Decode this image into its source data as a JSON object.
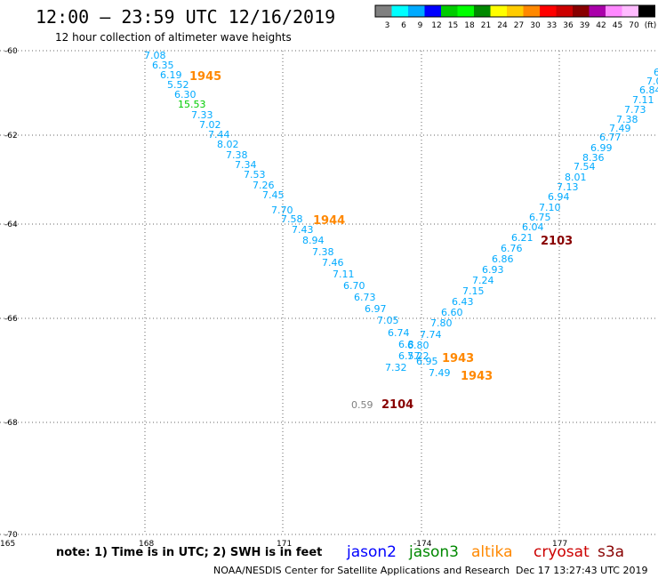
{
  "header": {
    "title": "12:00 — 23:59 UTC 12/16/2019",
    "subtitle": "12 hour collection of altimeter wave heights"
  },
  "colorbar": {
    "labels": [
      "3",
      "6",
      "9",
      "12",
      "15",
      "18",
      "21",
      "24",
      "27",
      "30",
      "33",
      "36",
      "39",
      "42",
      "45",
      "70",
      "(ft)"
    ],
    "colors": [
      "#808080",
      "#00ffff",
      "#00aaff",
      "#0000ff",
      "#00cc00",
      "#00ff00",
      "#008800",
      "#ffff00",
      "#ffcc00",
      "#ff8800",
      "#ff0000",
      "#cc0000",
      "#880000",
      "#aa00aa",
      "#ff88ff",
      "#ffbbff",
      "#000000"
    ]
  },
  "axes": {
    "lat_labels": [
      "-60",
      "-62",
      "-64",
      "-66",
      "-68",
      "-70"
    ],
    "lon_labels": [
      "165",
      "168",
      "171",
      "-174",
      "177"
    ]
  },
  "swh": [
    {
      "t": "7.08",
      "c": "#00aaff"
    },
    {
      "t": "6.35",
      "c": "#00aaff"
    },
    {
      "t": "6.19",
      "c": "#00aaff"
    },
    {
      "t": "5.52",
      "c": "#00aaff"
    },
    {
      "t": "6.30",
      "c": "#00aaff"
    },
    {
      "t": "15.53",
      "c": "#00cc00"
    },
    {
      "t": "7.33",
      "c": "#00aaff"
    },
    {
      "t": "7.02",
      "c": "#00aaff"
    },
    {
      "t": "7.44",
      "c": "#00aaff"
    },
    {
      "t": "8.02",
      "c": "#00aaff"
    },
    {
      "t": "7.38",
      "c": "#00aaff"
    },
    {
      "t": "7.34",
      "c": "#00aaff"
    },
    {
      "t": "7.53",
      "c": "#00aaff"
    },
    {
      "t": "7.26",
      "c": "#00aaff"
    },
    {
      "t": "7.45",
      "c": "#00aaff"
    },
    {
      "t": "7.70",
      "c": "#00aaff"
    },
    {
      "t": "7.58",
      "c": "#00aaff"
    },
    {
      "t": "7.43",
      "c": "#00aaff"
    },
    {
      "t": "8.94",
      "c": "#00aaff"
    },
    {
      "t": "7.38",
      "c": "#00aaff"
    },
    {
      "t": "7.46",
      "c": "#00aaff"
    },
    {
      "t": "7.11",
      "c": "#00aaff"
    },
    {
      "t": "6.70",
      "c": "#00aaff"
    },
    {
      "t": "6.73",
      "c": "#00aaff"
    },
    {
      "t": "6.97",
      "c": "#00aaff"
    },
    {
      "t": "7.05",
      "c": "#00aaff"
    },
    {
      "t": "6.74",
      "c": "#00aaff"
    },
    {
      "t": "6.8",
      "c": "#00aaff"
    },
    {
      "t": "6.57",
      "c": "#00aaff"
    },
    {
      "t": "7.32",
      "c": "#00aaff"
    },
    {
      "t": "6.80",
      "c": "#00aaff"
    },
    {
      "t": "7.22",
      "c": "#00aaff"
    },
    {
      "t": "6.95",
      "c": "#00aaff"
    },
    {
      "t": "7.49",
      "c": "#00aaff"
    },
    {
      "t": "7.74",
      "c": "#00aaff"
    },
    {
      "t": "7.80",
      "c": "#00aaff"
    },
    {
      "t": "6.60",
      "c": "#00aaff"
    },
    {
      "t": "6.43",
      "c": "#00aaff"
    },
    {
      "t": "7.15",
      "c": "#00aaff"
    },
    {
      "t": "7.24",
      "c": "#00aaff"
    },
    {
      "t": "6.93",
      "c": "#00aaff"
    },
    {
      "t": "6.86",
      "c": "#00aaff"
    },
    {
      "t": "6.76",
      "c": "#00aaff"
    },
    {
      "t": "6.21",
      "c": "#00aaff"
    },
    {
      "t": "6.04",
      "c": "#00aaff"
    },
    {
      "t": "6.75",
      "c": "#00aaff"
    },
    {
      "t": "7.10",
      "c": "#00aaff"
    },
    {
      "t": "6.94",
      "c": "#00aaff"
    },
    {
      "t": "7.13",
      "c": "#00aaff"
    },
    {
      "t": "8.01",
      "c": "#00aaff"
    },
    {
      "t": "7.54",
      "c": "#00aaff"
    },
    {
      "t": "8.36",
      "c": "#00aaff"
    },
    {
      "t": "6.99",
      "c": "#00aaff"
    },
    {
      "t": "6.77",
      "c": "#00aaff"
    },
    {
      "t": "7.49",
      "c": "#00aaff"
    },
    {
      "t": "7.38",
      "c": "#00aaff"
    },
    {
      "t": "7.73",
      "c": "#00aaff"
    },
    {
      "t": "7.11",
      "c": "#00aaff"
    },
    {
      "t": "6.84",
      "c": "#00aaff"
    },
    {
      "t": "7.0",
      "c": "#00aaff"
    },
    {
      "t": "6",
      "c": "#00aaff"
    },
    {
      "t": "0.59",
      "c": "#808080"
    }
  ],
  "pass_times": [
    {
      "t": "1945",
      "c": "#ff8800"
    },
    {
      "t": "1944",
      "c": "#ff8800"
    },
    {
      "t": "1943",
      "c": "#ff8800"
    },
    {
      "t": "1943",
      "c": "#ff8800"
    },
    {
      "t": "2103",
      "c": "#880000"
    },
    {
      "t": "2104",
      "c": "#880000"
    }
  ],
  "footer": {
    "note": "note: 1) Time is in UTC; 2) SWH is in feet",
    "satellites": [
      {
        "name": "jason2",
        "color": "#0000ff"
      },
      {
        "name": "jason3",
        "color": "#008800"
      },
      {
        "name": "altika",
        "color": "#ff8800"
      },
      {
        "name": "cryosat",
        "color": "#cc0000"
      },
      {
        "name": "s3a",
        "color": "#880000"
      }
    ],
    "credit": "NOAA/NESDIS Center for Satellite Applications and Research",
    "timestamp": "Dec 17 13:27:43 UTC 2019"
  }
}
